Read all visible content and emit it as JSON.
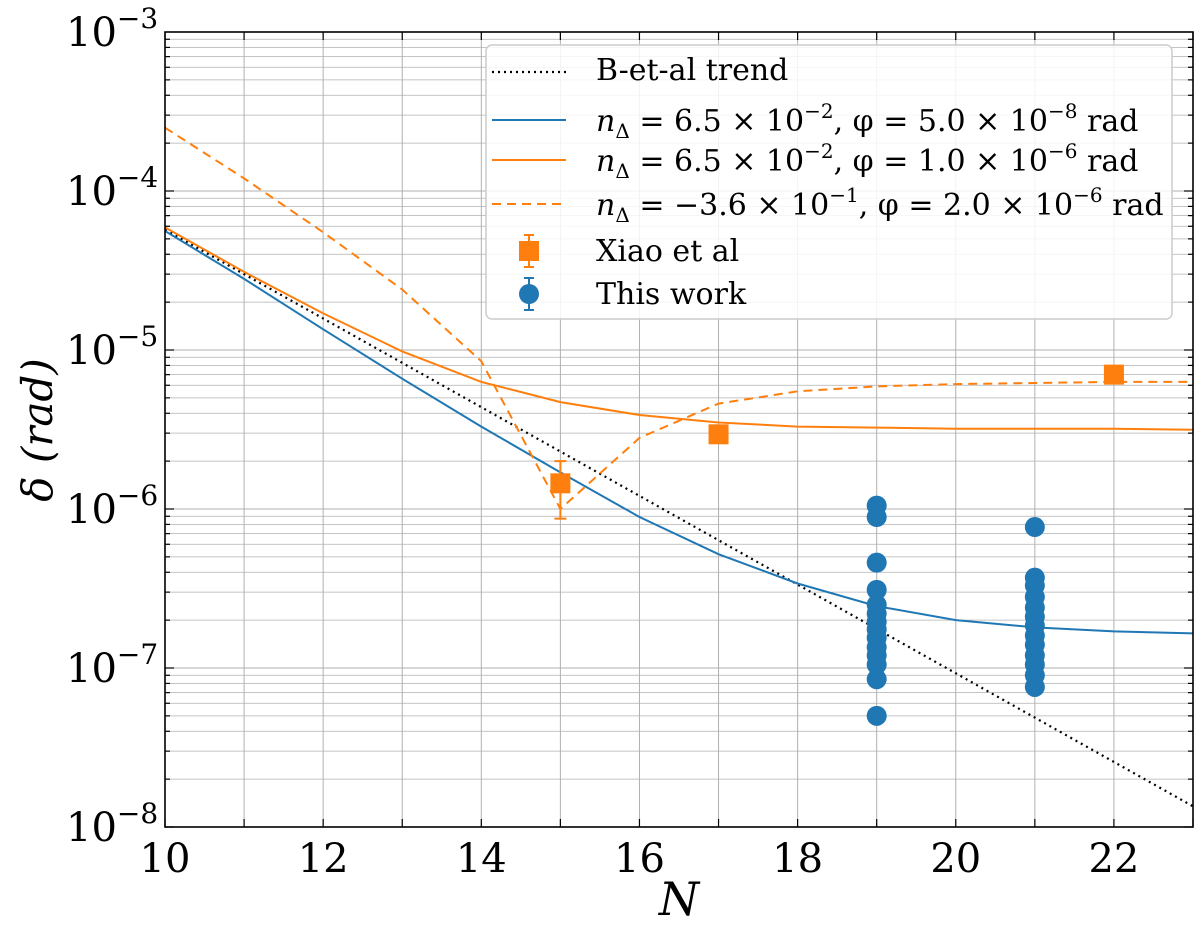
{
  "chart_data": {
    "type": "line",
    "xlabel": "N",
    "ylabel": "δ (rad)",
    "xlim": [
      10,
      23
    ],
    "ylim": [
      1e-08,
      0.001
    ],
    "yscale": "log",
    "grid": true,
    "legend_position": "top-right",
    "x_ticks": [
      "10",
      "12",
      "14",
      "16",
      "18",
      "20",
      "22"
    ],
    "y_ticks": [
      {
        "base": "10",
        "exp": "−8"
      },
      {
        "base": "10",
        "exp": "−7"
      },
      {
        "base": "10",
        "exp": "−6"
      },
      {
        "base": "10",
        "exp": "−5"
      },
      {
        "base": "10",
        "exp": "−4"
      },
      {
        "base": "10",
        "exp": "−3"
      }
    ],
    "series": [
      {
        "name": "B-et-al trend",
        "style": "dotted",
        "color": "#000000",
        "x": [
          10,
          23
        ],
        "y": [
          5.7e-05,
          1.35e-08
        ]
      },
      {
        "name_parts": [
          "n",
          "Δ",
          " = 6.5 × 10",
          "−2",
          ", φ = 5.0 × 10",
          "−8",
          " rad"
        ],
        "style": "solid",
        "color": "#1f77b4",
        "x": [
          10,
          11,
          12,
          13,
          14,
          15,
          16,
          17,
          18,
          19,
          20,
          21,
          22,
          23
        ],
        "y": [
          5.6e-05,
          2.8e-05,
          1.35e-05,
          6.6e-06,
          3.3e-06,
          1.7e-06,
          8.9e-07,
          5.2e-07,
          3.4e-07,
          2.45e-07,
          2e-07,
          1.8e-07,
          1.7e-07,
          1.65e-07
        ]
      },
      {
        "name_parts": [
          "n",
          "Δ",
          " = 6.5 × 10",
          "−2",
          ", φ = 1.0 × 10",
          "−6",
          " rad"
        ],
        "style": "solid",
        "color": "#ff7f0e",
        "x": [
          10,
          11,
          12,
          13,
          14,
          15,
          16,
          17,
          18,
          19,
          20,
          21,
          22,
          23
        ],
        "y": [
          5.9e-05,
          3.1e-05,
          1.7e-05,
          9.8e-06,
          6.3e-06,
          4.7e-06,
          3.9e-06,
          3.5e-06,
          3.3e-06,
          3.25e-06,
          3.2e-06,
          3.2e-06,
          3.2e-06,
          3.15e-06
        ]
      },
      {
        "name_parts": [
          "n",
          "Δ",
          " = −3.6 × 10",
          "−1",
          ", φ = 2.0 × 10",
          "−6",
          " rad"
        ],
        "style": "dashed",
        "color": "#ff7f0e",
        "x": [
          10,
          11,
          12,
          13,
          14,
          15,
          16,
          17,
          18,
          19,
          20,
          21,
          22,
          23
        ],
        "y": [
          0.00025,
          0.00012,
          5.5e-05,
          2.4e-05,
          8.5e-06,
          1e-06,
          2.8e-06,
          4.6e-06,
          5.5e-06,
          5.9e-06,
          6.1e-06,
          6.2e-06,
          6.3e-06,
          6.3e-06
        ]
      }
    ],
    "markers": [
      {
        "name": "Xiao et al",
        "marker": "square",
        "color": "#ff7f0e",
        "points": [
          {
            "x": 15,
            "y": 1.45e-06,
            "ylo": 8.7e-07,
            "yhi": 2e-06
          },
          {
            "x": 17,
            "y": 2.95e-06
          },
          {
            "x": 22,
            "y": 7e-06
          }
        ]
      },
      {
        "name": "This work",
        "marker": "circle",
        "color": "#1f77b4",
        "points": [
          {
            "x": 19,
            "y": 1.05e-06
          },
          {
            "x": 19,
            "y": 8.9e-07
          },
          {
            "x": 19,
            "y": 4.6e-07
          },
          {
            "x": 19,
            "y": 3.1e-07
          },
          {
            "x": 19,
            "y": 2.5e-07
          },
          {
            "x": 19,
            "y": 2.2e-07
          },
          {
            "x": 19,
            "y": 1.95e-07
          },
          {
            "x": 19,
            "y": 1.75e-07
          },
          {
            "x": 19,
            "y": 1.55e-07
          },
          {
            "x": 19,
            "y": 1.35e-07
          },
          {
            "x": 19,
            "y": 1.2e-07
          },
          {
            "x": 19,
            "y": 1.05e-07
          },
          {
            "x": 19,
            "y": 8.5e-08
          },
          {
            "x": 19,
            "y": 5e-08
          },
          {
            "x": 21,
            "y": 7.7e-07
          },
          {
            "x": 21,
            "y": 3.7e-07
          },
          {
            "x": 21,
            "y": 3.3e-07
          },
          {
            "x": 21,
            "y": 2.8e-07
          },
          {
            "x": 21,
            "y": 2.4e-07
          },
          {
            "x": 21,
            "y": 2.1e-07
          },
          {
            "x": 21,
            "y": 1.85e-07
          },
          {
            "x": 21,
            "y": 1.6e-07
          },
          {
            "x": 21,
            "y": 1.4e-07
          },
          {
            "x": 21,
            "y": 1.2e-07
          },
          {
            "x": 21,
            "y": 1.05e-07
          },
          {
            "x": 21,
            "y": 9e-08
          },
          {
            "x": 21,
            "y": 7.6e-08
          }
        ]
      }
    ]
  }
}
